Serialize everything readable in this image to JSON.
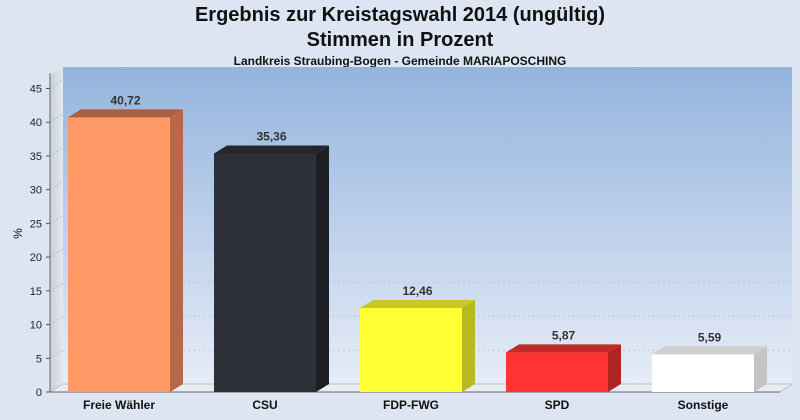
{
  "chart_data": {
    "type": "bar",
    "title": "Ergebnis zur Kreistagswahl 2014 (ungültig)",
    "subtitle": "Stimmen in Prozent",
    "subtitle2": "Landkreis Straubing-Bogen - Gemeinde MARIAPOSCHING",
    "ylabel": "%",
    "xlabel": "",
    "ylim": [
      0,
      47
    ],
    "yticks": [
      0,
      5,
      10,
      15,
      20,
      25,
      30,
      35,
      40,
      45
    ],
    "categories": [
      "Freie Wähler",
      "CSU",
      "FDP-FWG",
      "SPD",
      "Sonstige"
    ],
    "values": [
      40.72,
      35.36,
      12.46,
      5.87,
      5.59
    ],
    "value_labels": [
      "40,72",
      "35,36",
      "12,46",
      "5,87",
      "5,59"
    ],
    "colors": [
      "#ff9966",
      "#2d3038",
      "#ffff33",
      "#ff3333",
      "#ffffff"
    ],
    "side_colors": [
      "#b86848",
      "#1c1e24",
      "#b8b820",
      "#b02424",
      "#c4c4c4"
    ],
    "top_colors": [
      "#a86040",
      "#24262c",
      "#c8c828",
      "#c02c2c",
      "#d0d0d0"
    ],
    "grid": true,
    "legend": "none"
  }
}
